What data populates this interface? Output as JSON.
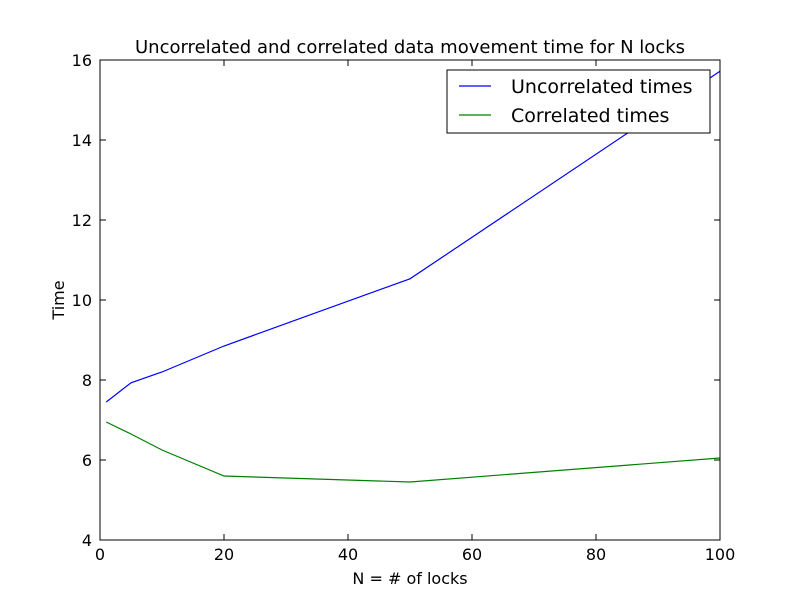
{
  "chart_data": {
    "type": "line",
    "title": "Uncorrelated and correlated data movement time for N locks",
    "xlabel": "N = # of locks",
    "ylabel": "Time",
    "xlim": [
      0,
      100
    ],
    "ylim": [
      4,
      16
    ],
    "xticks": [
      0,
      20,
      40,
      60,
      80,
      100
    ],
    "yticks": [
      4,
      6,
      8,
      10,
      12,
      14,
      16
    ],
    "xtick_labels": [
      "0",
      "20",
      "40",
      "60",
      "80",
      "100"
    ],
    "ytick_labels": [
      "4",
      "6",
      "8",
      "10",
      "12",
      "14",
      "16"
    ],
    "grid": false,
    "legend_position": "top-right",
    "series": [
      {
        "name": "Uncorrelated times",
        "color": "#0000ff",
        "x": [
          1,
          5,
          10,
          20,
          50,
          100
        ],
        "y": [
          7.45,
          7.93,
          8.2,
          8.85,
          10.53,
          15.72
        ]
      },
      {
        "name": "Correlated times",
        "color": "#008000",
        "x": [
          1,
          5,
          10,
          20,
          50,
          100
        ],
        "y": [
          6.95,
          6.65,
          6.25,
          5.6,
          5.45,
          6.05
        ]
      }
    ]
  }
}
